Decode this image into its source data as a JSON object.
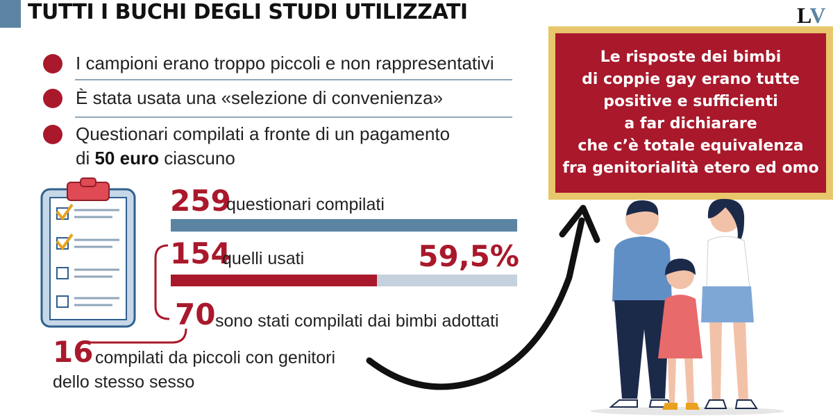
{
  "header": {
    "title": "TUTTI I BUCHI DEGLI STUDI UTILIZZATI",
    "logo_l": "L",
    "logo_v": "V"
  },
  "bullets": [
    {
      "text": "I campioni erano troppo piccoli e non rappresentativi"
    },
    {
      "text": "È stata usata una «selezione di convenienza»"
    },
    {
      "line1": "Questionari compilati a fronte di un pagamento",
      "line2_pre": "di ",
      "line2_bold": "50 euro",
      "line2_post": " ciascuno"
    }
  ],
  "stats": {
    "total": {
      "value": "259",
      "label": "questionari compilati"
    },
    "used": {
      "value": "154",
      "label": "quelli usati",
      "percent": "59,5%",
      "fraction": 0.595
    },
    "adopted": {
      "value": "70",
      "label": "sono stati compilati dai bimbi adottati"
    },
    "same_sex": {
      "value": "16",
      "label_line1": "compilati da piccoli con genitori",
      "label_line2": "dello stesso sesso"
    }
  },
  "callout": {
    "text": "Le risposte dei bimbi\ndi coppie gay erano tutte\npositive e sufficienti\na far dichiarare\nche c’è totale equivalenza\nfra genitorialità etero ed omo"
  },
  "colors": {
    "accent_red": "#a9182b",
    "steel_blue": "#5b84a3",
    "gold": "#e8c66c",
    "light_bar": "#c5d1dc"
  },
  "icons": [
    "clipboard-checklist-icon",
    "curved-arrow-icon",
    "family-illustration"
  ]
}
